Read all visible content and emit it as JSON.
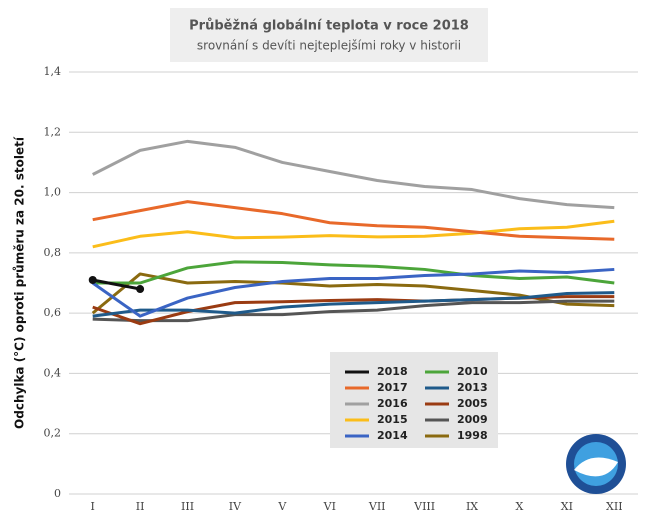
{
  "chart_data": {
    "type": "line",
    "title": "Průběžná globální teplota v roce 2018",
    "subtitle": "srovnání s devíti nejteplejšími roky v historii",
    "y_label": "Odchylka (°C) oproti průměru za 20. století",
    "categories": [
      "I",
      "II",
      "III",
      "IV",
      "V",
      "VI",
      "VII",
      "VIII",
      "IX",
      "X",
      "XI",
      "XII"
    ],
    "ylim": [
      0,
      1.4
    ],
    "yticks": [
      0,
      {
        "value": 0.2,
        "label": "0,2"
      },
      {
        "value": 0.4,
        "label": "0,4"
      },
      {
        "value": 0.6,
        "label": "0,6"
      },
      {
        "value": 0.8,
        "label": "0,8"
      },
      {
        "value": 1.0,
        "label": "1,0"
      },
      {
        "value": 1.2,
        "label": "1,2"
      },
      {
        "value": 1.4,
        "label": "1,4"
      }
    ],
    "grid": true,
    "series": [
      {
        "name": "2018",
        "color": "#111111",
        "markers": true,
        "values": [
          0.71,
          0.68,
          null,
          null,
          null,
          null,
          null,
          null,
          null,
          null,
          null,
          null
        ]
      },
      {
        "name": "2017",
        "color": "#e8692a",
        "values": [
          0.91,
          0.94,
          0.97,
          0.95,
          0.93,
          0.9,
          0.89,
          0.885,
          0.87,
          0.855,
          0.85,
          0.845
        ]
      },
      {
        "name": "2016",
        "color": "#a0a0a0",
        "values": [
          1.06,
          1.14,
          1.17,
          1.15,
          1.1,
          1.07,
          1.04,
          1.02,
          1.01,
          0.98,
          0.96,
          0.95
        ]
      },
      {
        "name": "2015",
        "color": "#fbbd1a",
        "values": [
          0.82,
          0.855,
          0.87,
          0.85,
          0.852,
          0.857,
          0.853,
          0.855,
          0.865,
          0.88,
          0.885,
          0.905
        ]
      },
      {
        "name": "2014",
        "color": "#3a64c4",
        "values": [
          0.7,
          0.59,
          0.65,
          0.685,
          0.705,
          0.715,
          0.715,
          0.725,
          0.73,
          0.74,
          0.735,
          0.745
        ]
      },
      {
        "name": "2010",
        "color": "#4ca53a",
        "values": [
          0.7,
          0.7,
          0.75,
          0.77,
          0.768,
          0.76,
          0.755,
          0.745,
          0.725,
          0.715,
          0.72,
          0.7
        ]
      },
      {
        "name": "2013",
        "color": "#1f5a8a",
        "values": [
          0.59,
          0.61,
          0.61,
          0.6,
          0.62,
          0.63,
          0.635,
          0.64,
          0.645,
          0.65,
          0.665,
          0.668
        ]
      },
      {
        "name": "2005",
        "color": "#9a3b12",
        "values": [
          0.62,
          0.565,
          0.605,
          0.635,
          0.638,
          0.642,
          0.645,
          0.64,
          0.645,
          0.65,
          0.655,
          0.655
        ]
      },
      {
        "name": "2009",
        "color": "#555555",
        "values": [
          0.58,
          0.575,
          0.575,
          0.595,
          0.595,
          0.605,
          0.61,
          0.625,
          0.635,
          0.635,
          0.64,
          0.64
        ]
      },
      {
        "name": "1998",
        "color": "#8a6a10",
        "values": [
          0.6,
          0.73,
          0.7,
          0.705,
          0.7,
          0.69,
          0.695,
          0.69,
          0.675,
          0.66,
          0.63,
          0.625
        ]
      }
    ]
  }
}
